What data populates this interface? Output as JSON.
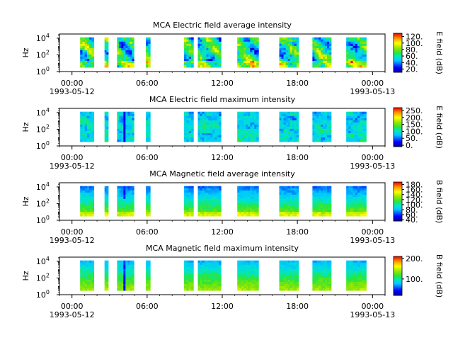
{
  "chart_data": [
    {
      "type": "heatmap",
      "title": "MCA  Electric field average intensity",
      "ylabel": "Hz",
      "colorbar_label": "E field (dB)",
      "colorbar_ticks": [
        "20.",
        "40.",
        "60.",
        "80.",
        "100.",
        "120."
      ],
      "colorbar_range": [
        10,
        130
      ],
      "ylim_log10": [
        0,
        4.5
      ],
      "yticks": [
        {
          "exp": "0",
          "v": 0
        },
        {
          "exp": "2",
          "v": 2
        },
        {
          "exp": "4",
          "v": 4
        }
      ],
      "xticks": [
        {
          "time": "00:00",
          "date": "1993-05-12",
          "hour": 0
        },
        {
          "time": "06:00",
          "date": "",
          "hour": 6
        },
        {
          "time": "12:00",
          "date": "",
          "hour": 12
        },
        {
          "time": "18:00",
          "date": "",
          "hour": 18
        },
        {
          "time": "00:00",
          "date": "1993-05-13",
          "hour": 24
        }
      ],
      "xlim_hours": [
        -1,
        25
      ],
      "style": "e_avg"
    },
    {
      "type": "heatmap",
      "title": "MCA  Electric field maximum intensity",
      "ylabel": "Hz",
      "colorbar_label": "E field (dB)",
      "colorbar_ticks": [
        "0.",
        "50.",
        "100.",
        "150.",
        "200.",
        "250."
      ],
      "colorbar_range": [
        -10,
        270
      ],
      "ylim_log10": [
        0,
        4.5
      ],
      "yticks": [
        {
          "exp": "0",
          "v": 0
        },
        {
          "exp": "2",
          "v": 2
        },
        {
          "exp": "4",
          "v": 4
        }
      ],
      "xticks": [
        {
          "time": "00:00",
          "date": "1993-05-12",
          "hour": 0
        },
        {
          "time": "06:00",
          "date": "",
          "hour": 6
        },
        {
          "time": "12:00",
          "date": "",
          "hour": 12
        },
        {
          "time": "18:00",
          "date": "",
          "hour": 18
        },
        {
          "time": "00:00",
          "date": "1993-05-13",
          "hour": 24
        }
      ],
      "xlim_hours": [
        -1,
        25
      ],
      "style": "e_max"
    },
    {
      "type": "heatmap",
      "title": "MCA  Magnetic field average intensity",
      "ylabel": "Hz",
      "colorbar_label": "B field (dB)",
      "colorbar_ticks": [
        "40.",
        "60.",
        "80.",
        "100.",
        "120.",
        "140.",
        "160.",
        "180."
      ],
      "colorbar_range": [
        35,
        190
      ],
      "ylim_log10": [
        0,
        4.5
      ],
      "yticks": [
        {
          "exp": "0",
          "v": 0
        },
        {
          "exp": "2",
          "v": 2
        },
        {
          "exp": "4",
          "v": 4
        }
      ],
      "xticks": [
        {
          "time": "00:00",
          "date": "1993-05-12",
          "hour": 0
        },
        {
          "time": "06:00",
          "date": "",
          "hour": 6
        },
        {
          "time": "12:00",
          "date": "",
          "hour": 12
        },
        {
          "time": "18:00",
          "date": "",
          "hour": 18
        },
        {
          "time": "00:00",
          "date": "1993-05-13",
          "hour": 24
        }
      ],
      "xlim_hours": [
        -1,
        25
      ],
      "style": "b_avg"
    },
    {
      "type": "heatmap",
      "title": "MCA  Magnetic field maximum intensity",
      "ylabel": "Hz",
      "colorbar_label": "B field (dB)",
      "colorbar_ticks": [
        "100.",
        "200."
      ],
      "colorbar_range": [
        20,
        210
      ],
      "ylim_log10": [
        0,
        4.5
      ],
      "yticks": [
        {
          "exp": "0",
          "v": 0
        },
        {
          "exp": "2",
          "v": 2
        },
        {
          "exp": "4",
          "v": 4
        }
      ],
      "xticks": [
        {
          "time": "00:00",
          "date": "1993-05-12",
          "hour": 0
        },
        {
          "time": "06:00",
          "date": "",
          "hour": 6
        },
        {
          "time": "12:00",
          "date": "",
          "hour": 12
        },
        {
          "time": "18:00",
          "date": "",
          "hour": 18
        },
        {
          "time": "00:00",
          "date": "1993-05-13",
          "hour": 24
        }
      ],
      "xlim_hours": [
        -1,
        25
      ],
      "style": "b_max"
    }
  ],
  "data_intervals_hours": [
    [
      0.65,
      1.75
    ],
    [
      2.6,
      2.9
    ],
    [
      3.6,
      4.95
    ],
    [
      5.9,
      6.25
    ],
    [
      8.95,
      9.7
    ],
    [
      10.05,
      11.9
    ],
    [
      13.2,
      14.9
    ],
    [
      16.55,
      18.1
    ],
    [
      19.2,
      20.7
    ],
    [
      21.9,
      23.5
    ]
  ],
  "freq_range_log10": [
    0.5,
    4.1
  ]
}
